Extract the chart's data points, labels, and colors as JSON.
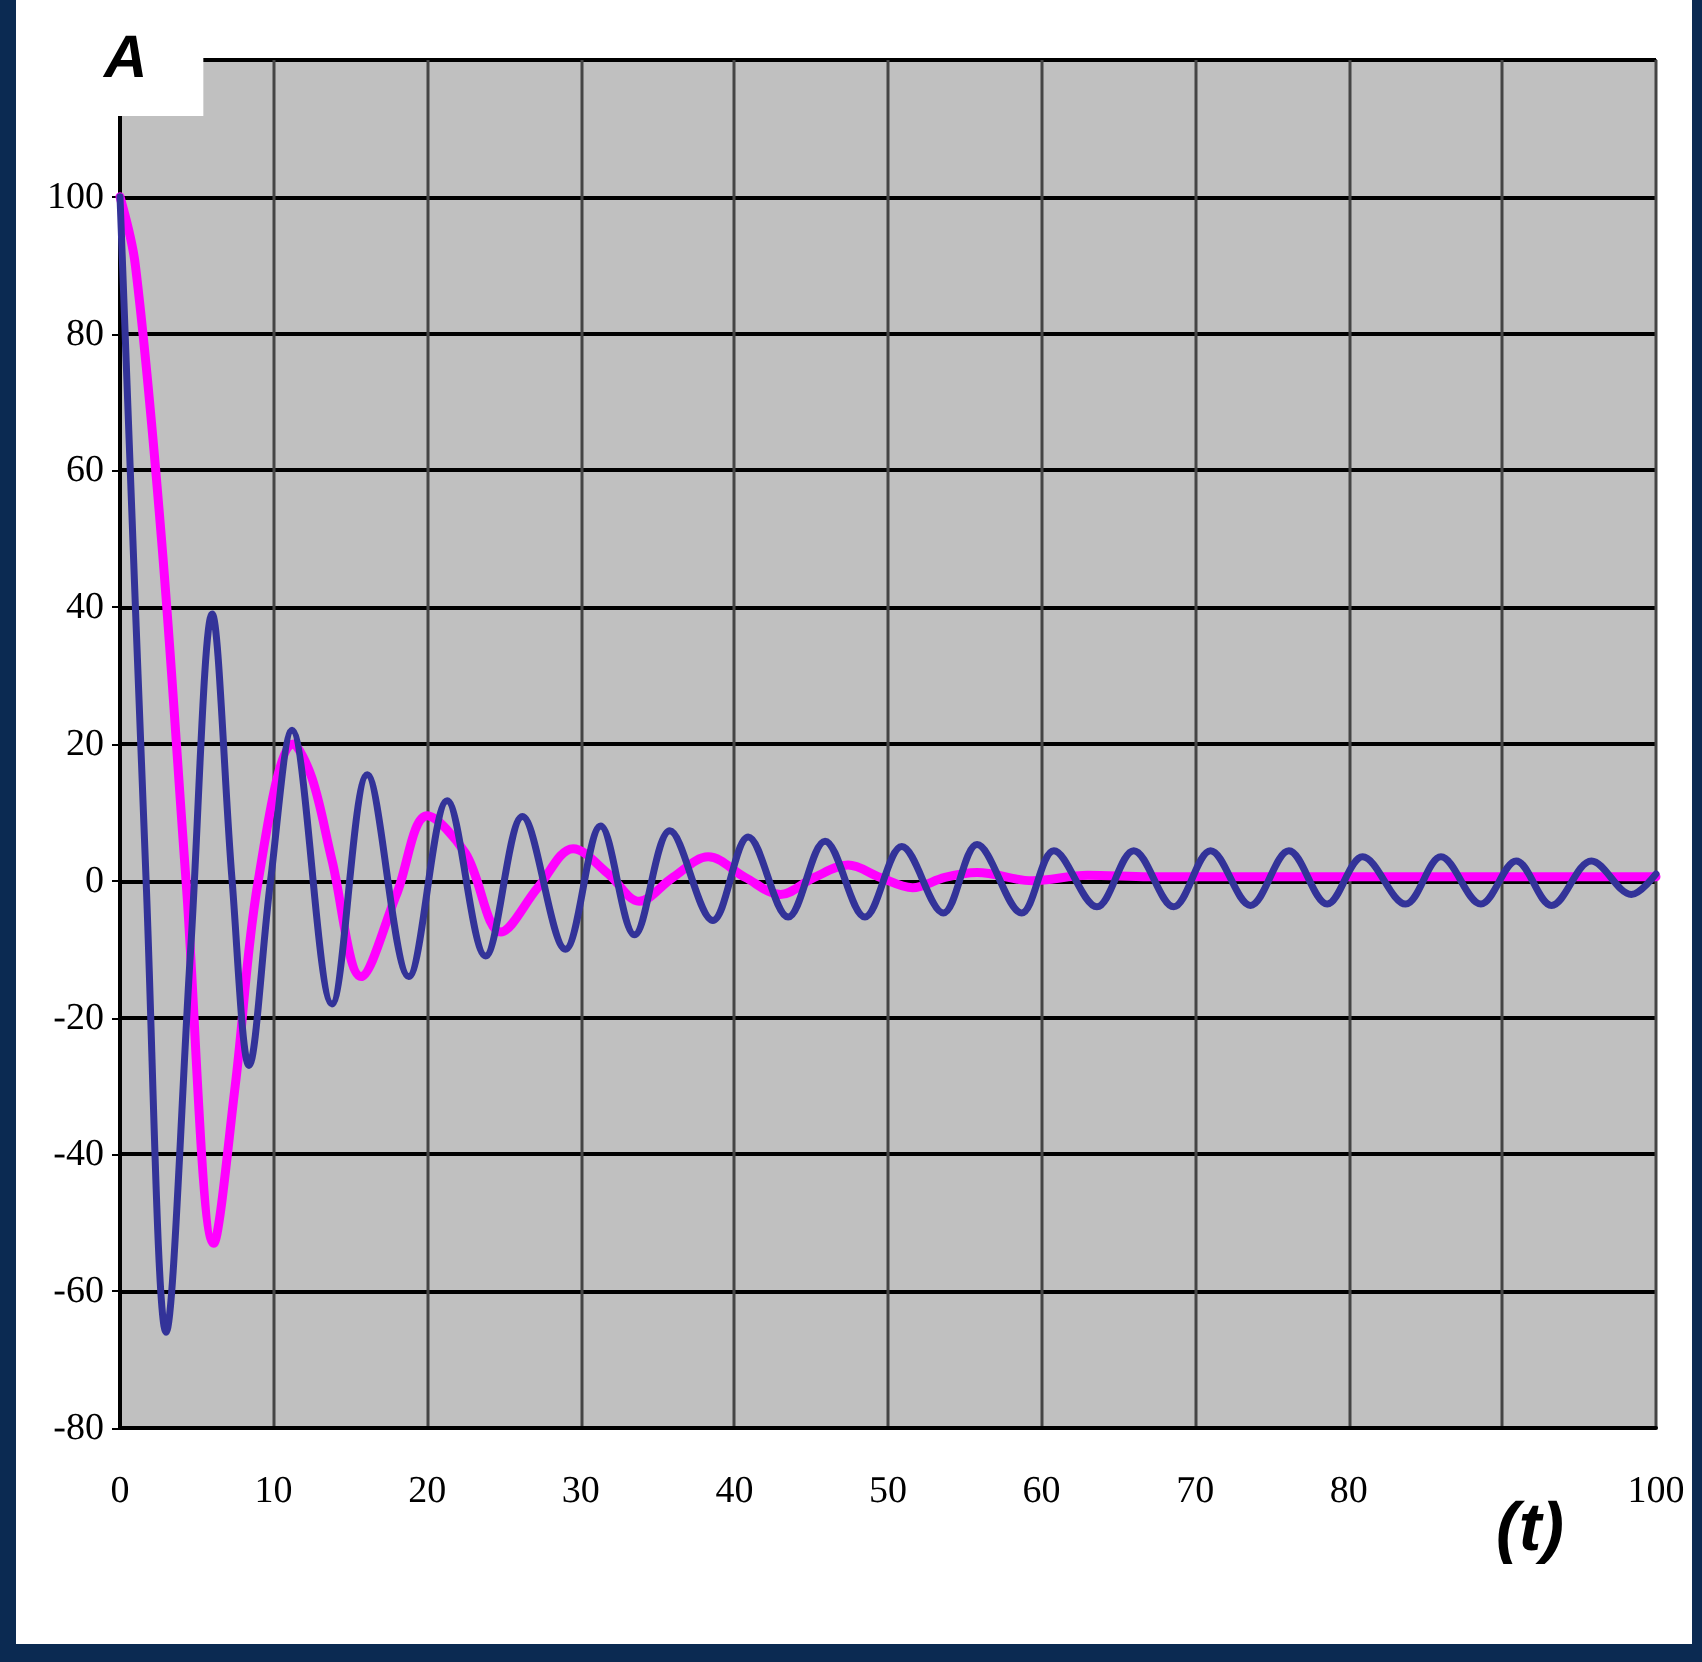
{
  "chart_data": {
    "type": "line",
    "title": "A",
    "xlabel": "(t)",
    "xlim": [
      0,
      100
    ],
    "xticks": [
      0,
      10,
      20,
      30,
      40,
      50,
      60,
      70,
      80,
      {
        "value": 90,
        "label": null
      },
      100
    ],
    "ylim": [
      -80,
      120
    ],
    "yticks": [
      -80,
      -60,
      -40,
      -20,
      0,
      20,
      40,
      60,
      80,
      100,
      {
        "value": 120,
        "label": null
      }
    ],
    "grid": true,
    "marker": "none",
    "line_style": "solid",
    "series": [
      {
        "color": "#ff00ff",
        "x": [
          0,
          1,
          2.7,
          4.3,
          6.1,
          7.5,
          9,
          11.3,
          12.5,
          13.8,
          15.7,
          18,
          20,
          22.5,
          24.8,
          27.2,
          29.5,
          31.8,
          33.8,
          36,
          38.3,
          40.7,
          43,
          45.2,
          47.4,
          49.5,
          51.6,
          53.7,
          55.8,
          59.4,
          63,
          67,
          72,
          80,
          90,
          100
        ],
        "values": [
          100,
          90,
          50,
          0,
          -53,
          -30,
          0,
          20,
          15,
          3,
          -14,
          -2,
          9.5,
          4,
          -7.5,
          -1,
          4.7,
          1,
          -3,
          0.5,
          3.5,
          0.5,
          -2,
          0.5,
          2.3,
          0.5,
          -1,
          0.5,
          1.2,
          0,
          0.8,
          0.6,
          0.6,
          0.6,
          0.6,
          0.6
        ]
      },
      {
        "color": "#333399",
        "x": [
          0,
          1.7,
          3,
          4.6,
          6,
          7.3,
          8.4,
          9.8,
          11.2,
          13.8,
          16.1,
          18.8,
          21.3,
          23.8,
          26.2,
          29,
          31.3,
          33.5,
          35.8,
          38.6,
          40.9,
          43.5,
          45.9,
          48.5,
          50.9,
          53.6,
          55.8,
          58.7,
          60.8,
          63.6,
          66,
          68.6,
          71,
          73.6,
          76.1,
          78.6,
          80.9,
          83.7,
          86,
          88.6,
          90.9,
          93.2,
          95.8,
          98.4,
          100
        ],
        "values": [
          100,
          0,
          -66,
          -10,
          39,
          0,
          -27,
          0,
          22,
          -18,
          15.5,
          -14,
          11.7,
          -11,
          9.4,
          -10,
          8,
          -7.9,
          7.3,
          -5.8,
          6.4,
          -5.3,
          5.8,
          -5.3,
          5,
          -4.7,
          5.3,
          -4.7,
          4.4,
          -3.8,
          4.4,
          -3.8,
          4.4,
          -3.6,
          4.4,
          -3.4,
          3.5,
          -3.4,
          3.5,
          -3.4,
          2.9,
          -3.6,
          2.9,
          -2,
          1
        ]
      }
    ]
  }
}
